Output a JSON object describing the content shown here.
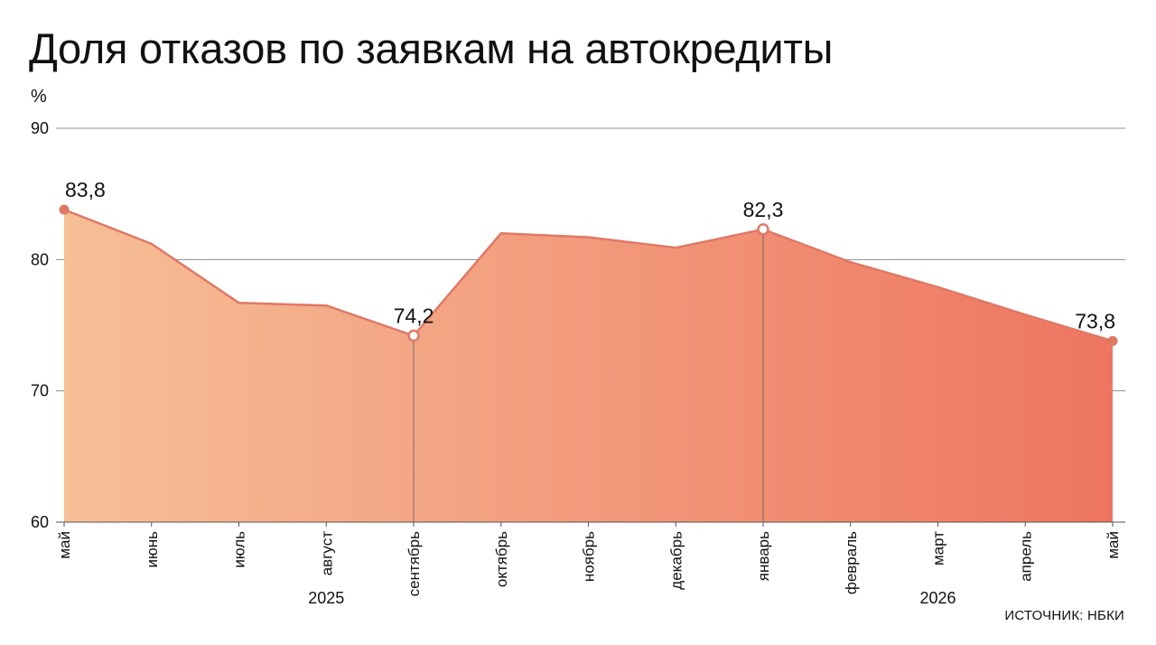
{
  "title": "Доля отказов по заявкам на автокредиты",
  "unit": "%",
  "source": "ИСТОЧНИК: НБКИ",
  "colors": {
    "area_start": "#f6bf96",
    "area_end": "#ee7560",
    "line": "#e07866",
    "marker": "#e07866",
    "grid": "#8c8c8c"
  },
  "chart_data": {
    "type": "area",
    "title": "Доля отказов по заявкам на автокредиты",
    "ylabel": "%",
    "ylim": [
      60,
      90
    ],
    "yticks": [
      60,
      70,
      80,
      90
    ],
    "grid": true,
    "categories": [
      "май",
      "июнь",
      "июль",
      "август",
      "сентябрь",
      "октябрь",
      "ноябрь",
      "декабрь",
      "январь",
      "февраль",
      "март",
      "апрель",
      "май"
    ],
    "years": [
      {
        "label": "2025",
        "center_category_index": 3
      },
      {
        "label": "2026",
        "center_category_index": 10
      }
    ],
    "series": [
      {
        "values": [
          83.8,
          81.2,
          76.7,
          76.5,
          74.2,
          82.0,
          81.7,
          80.9,
          82.3,
          79.8,
          77.9,
          75.8,
          73.8
        ]
      }
    ],
    "annotations": [
      {
        "index": 0,
        "text": "83,8"
      },
      {
        "index": 4,
        "text": "74,2"
      },
      {
        "index": 8,
        "text": "82,3"
      },
      {
        "index": 12,
        "text": "73,8"
      }
    ]
  }
}
